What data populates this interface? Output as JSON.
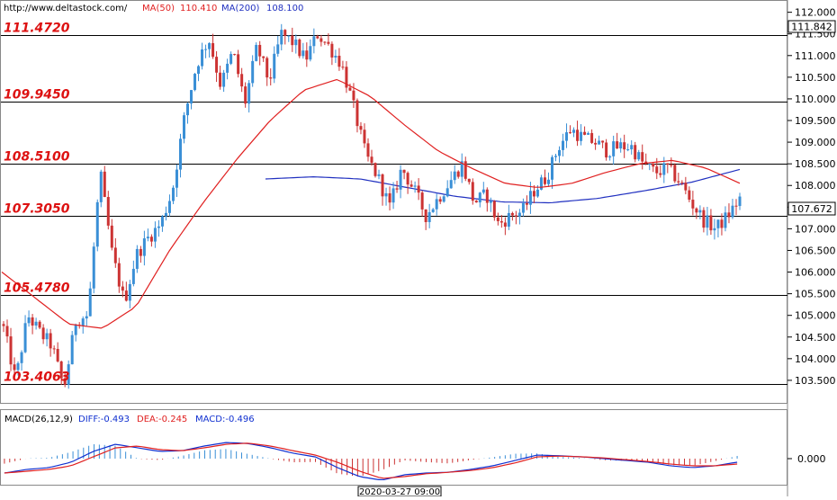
{
  "header": {
    "url": "http://www.deltastock.com/",
    "ma50_label": "MA(50)",
    "ma50_value": "110.410",
    "ma200_label": "MA(200)",
    "ma200_value": "108.100"
  },
  "colors": {
    "bull": "#3a8fd6",
    "bear": "#cc3333",
    "ma50": "#e02020",
    "ma200": "#2030c0",
    "level_text": "#dd1111",
    "macd_line": "#1030d0",
    "dea_line": "#e02020"
  },
  "chart_data": {
    "type": "candlestick",
    "price_axis_ticks": [
      "112.000",
      "111.500",
      "111.000",
      "110.500",
      "110.000",
      "109.500",
      "109.000",
      "108.500",
      "108.000",
      "107.500",
      "107.000",
      "106.500",
      "106.000",
      "105.500",
      "105.000",
      "104.500",
      "104.000",
      "103.500"
    ],
    "price_range": [
      103.0,
      112.2
    ],
    "current_price": "107.672",
    "top_marker_price": "111.842",
    "levels": [
      {
        "value": 111.472,
        "label": "111.4720"
      },
      {
        "value": 109.945,
        "label": "109.9450"
      },
      {
        "value": 108.51,
        "label": "108.5100"
      },
      {
        "value": 107.305,
        "label": "107.3050"
      },
      {
        "value": 105.478,
        "label": "105.4780"
      },
      {
        "value": 103.406,
        "label": "103.4063"
      }
    ],
    "close_path": [
      104.7,
      103.5,
      105.0,
      104.6,
      104.3,
      103.3,
      104.9,
      105.0,
      108.3,
      106.4,
      105.3,
      106.4,
      106.8,
      107.1,
      107.9,
      109.6,
      110.8,
      111.4,
      110.3,
      111.1,
      109.9,
      111.2,
      110.4,
      111.5,
      111.3,
      110.9,
      111.5,
      111.2,
      110.8,
      109.8,
      108.7,
      108.2,
      107.5,
      108.4,
      107.9,
      107.3,
      107.7,
      108.1,
      108.5,
      107.6,
      107.8,
      107.1,
      107.3,
      107.4,
      107.9,
      108.2,
      108.9,
      109.3,
      109.1,
      109.0,
      108.8,
      108.9,
      108.9,
      108.5,
      108.3,
      108.4,
      108.1,
      107.6,
      107.2,
      107.0,
      107.3,
      107.7
    ],
    "ma50_path": [
      106.0,
      105.4,
      104.8,
      104.7,
      105.2,
      106.5,
      107.6,
      108.6,
      109.5,
      110.2,
      110.45,
      110.05,
      109.4,
      108.8,
      108.4,
      108.05,
      107.95,
      108.05,
      108.3,
      108.5,
      108.58,
      108.4,
      108.05
    ],
    "ma200_path": [
      108.15,
      108.2,
      108.15,
      107.95,
      107.75,
      107.62,
      107.6,
      107.7,
      107.88,
      108.08,
      108.37
    ],
    "macd": {
      "label": "MACD(26,12,9)",
      "diff_label": "DIFF:-0.493",
      "dea_label": "DEA:-0.245",
      "macd_label": "MACD:-0.496",
      "zero_tick": "0.000",
      "diff_path": [
        -0.4,
        -0.3,
        -0.25,
        -0.1,
        0.2,
        0.4,
        0.3,
        0.2,
        0.22,
        0.35,
        0.45,
        0.42,
        0.3,
        0.15,
        0.05,
        -0.25,
        -0.5,
        -0.6,
        -0.45,
        -0.4,
        -0.38,
        -0.3,
        -0.2,
        -0.05,
        0.1,
        0.08,
        0.05,
        0.0,
        -0.05,
        -0.1,
        -0.2,
        -0.25,
        -0.2,
        -0.1
      ],
      "dea_path": [
        -0.4,
        -0.35,
        -0.3,
        -0.2,
        0.05,
        0.3,
        0.35,
        0.25,
        0.22,
        0.3,
        0.4,
        0.43,
        0.35,
        0.22,
        0.1,
        -0.1,
        -0.35,
        -0.55,
        -0.5,
        -0.42,
        -0.38,
        -0.33,
        -0.25,
        -0.12,
        0.05,
        0.07,
        0.05,
        0.02,
        -0.03,
        -0.08,
        -0.15,
        -0.2,
        -0.2,
        -0.15
      ]
    },
    "time_label": "2020-03-27 09:00"
  }
}
